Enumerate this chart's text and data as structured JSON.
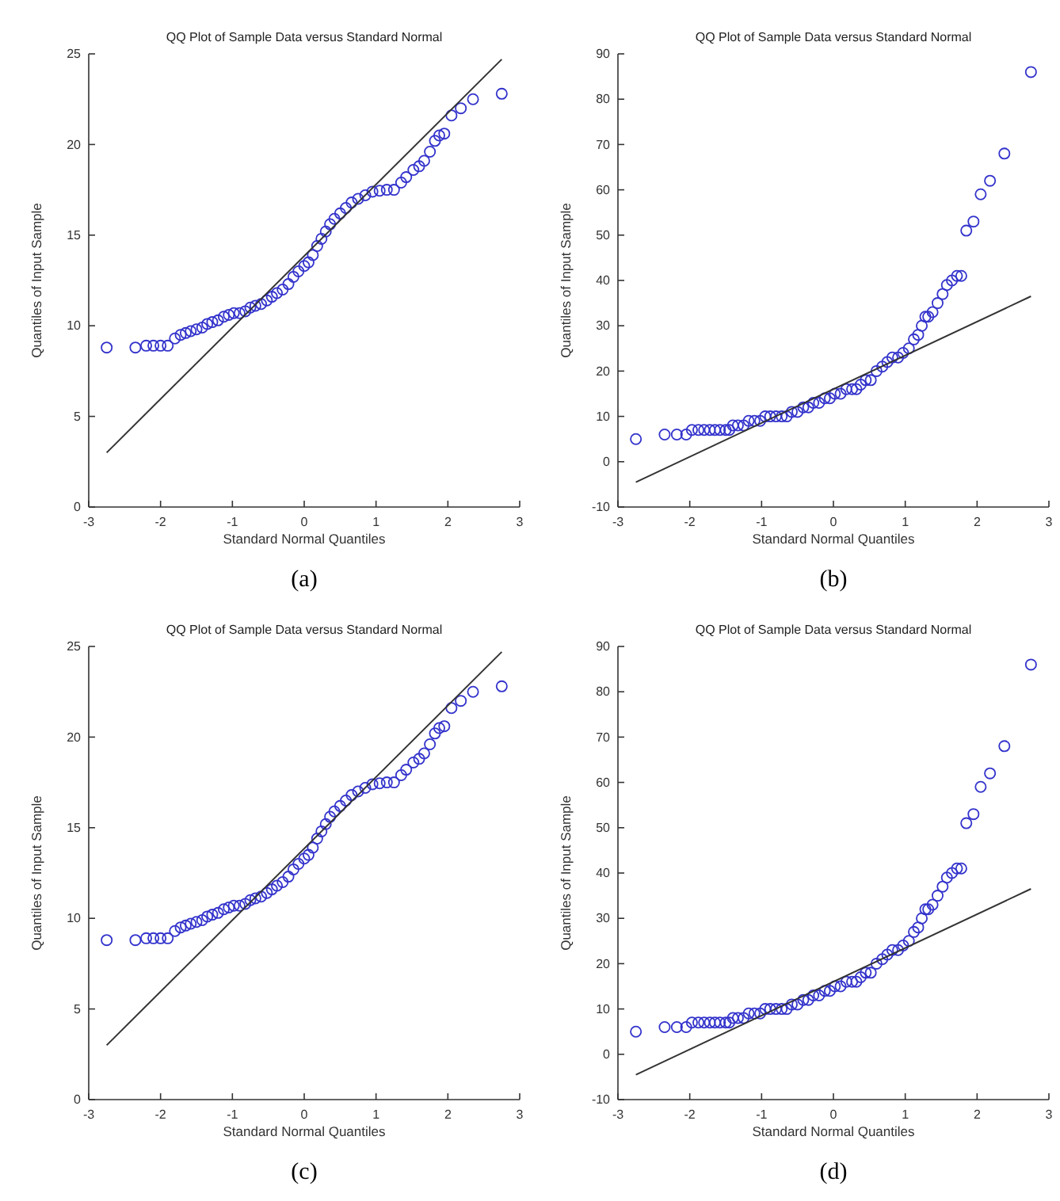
{
  "chart_data": [
    {
      "type": "scatter",
      "title": "QQ Plot of Sample Data versus Standard Normal",
      "xlabel": "Standard Normal Quantiles",
      "ylabel": "Quantiles of Input Sample",
      "annotations": [
        "(a)"
      ],
      "xlim": [
        -3,
        3
      ],
      "xticks": [
        -3,
        -2,
        -1,
        0,
        1,
        2,
        3
      ],
      "ylim": [
        0,
        25
      ],
      "yticks": [
        0,
        5,
        10,
        15,
        20,
        25
      ],
      "grid": false,
      "series": [
        {
          "marker": "circle",
          "color": "#3333cc",
          "x": [
            -2.75,
            -2.35,
            -2.2,
            -2.1,
            -2.0,
            -1.9,
            -1.8,
            -1.72,
            -1.65,
            -1.58,
            -1.5,
            -1.42,
            -1.35,
            -1.28,
            -1.2,
            -1.12,
            -1.05,
            -0.98,
            -0.9,
            -0.82,
            -0.75,
            -0.68,
            -0.6,
            -0.52,
            -0.45,
            -0.38,
            -0.3,
            -0.22,
            -0.15,
            -0.08,
            0,
            0.06,
            0.12,
            0.18,
            0.24,
            0.3,
            0.36,
            0.42,
            0.5,
            0.58,
            0.66,
            0.75,
            0.85,
            0.95,
            1.05,
            1.15,
            1.25,
            1.35,
            1.42,
            1.52,
            1.6,
            1.67,
            1.75,
            1.82,
            1.88,
            1.95,
            2.05,
            2.18,
            2.35,
            2.75
          ],
          "values": [
            8.8,
            8.8,
            8.9,
            8.9,
            8.9,
            8.9,
            9.3,
            9.5,
            9.6,
            9.7,
            9.8,
            9.9,
            10.1,
            10.2,
            10.3,
            10.5,
            10.6,
            10.7,
            10.7,
            10.8,
            11.0,
            11.1,
            11.2,
            11.4,
            11.6,
            11.8,
            12.0,
            12.3,
            12.7,
            13.0,
            13.3,
            13.5,
            13.9,
            14.4,
            14.8,
            15.2,
            15.6,
            15.9,
            16.2,
            16.5,
            16.8,
            17.0,
            17.2,
            17.4,
            17.45,
            17.5,
            17.5,
            17.9,
            18.2,
            18.6,
            18.8,
            19.1,
            19.6,
            20.2,
            20.5,
            20.6,
            21.6,
            22.0,
            22.5,
            22.8
          ]
        },
        {
          "type": "line",
          "color": "#333333",
          "x": [
            -2.75,
            2.75
          ],
          "values": [
            3.0,
            24.7
          ]
        }
      ]
    },
    {
      "type": "scatter",
      "title": "QQ Plot of Sample Data versus Standard Normal",
      "xlabel": "Standard Normal Quantiles",
      "ylabel": "Quantiles of Input Sample",
      "annotations": [
        "(b)"
      ],
      "xlim": [
        -3,
        3
      ],
      "xticks": [
        -3,
        -2,
        -1,
        0,
        1,
        2,
        3
      ],
      "ylim": [
        -10,
        90
      ],
      "yticks": [
        -10,
        0,
        10,
        20,
        30,
        40,
        50,
        60,
        70,
        80,
        90
      ],
      "grid": false,
      "series": [
        {
          "marker": "circle",
          "color": "#3333cc",
          "x": [
            -2.75,
            -2.35,
            -2.18,
            -2.05,
            -1.97,
            -1.88,
            -1.8,
            -1.72,
            -1.65,
            -1.58,
            -1.5,
            -1.45,
            -1.4,
            -1.33,
            -1.25,
            -1.18,
            -1.1,
            -1.02,
            -0.95,
            -0.88,
            -0.8,
            -0.72,
            -0.65,
            -0.58,
            -0.5,
            -0.42,
            -0.35,
            -0.28,
            -0.2,
            -0.12,
            -0.05,
            0.02,
            0.1,
            0.18,
            0.26,
            0.32,
            0.38,
            0.45,
            0.52,
            0.6,
            0.68,
            0.75,
            0.82,
            0.9,
            0.97,
            1.05,
            1.12,
            1.18,
            1.23,
            1.28,
            1.32,
            1.38,
            1.45,
            1.52,
            1.58,
            1.65,
            1.72,
            1.78,
            1.85,
            1.95,
            2.05,
            2.18,
            2.38,
            2.75
          ],
          "values": [
            5,
            6,
            6,
            6,
            7,
            7,
            7,
            7,
            7,
            7,
            7,
            7,
            8,
            8,
            8,
            9,
            9,
            9,
            10,
            10,
            10,
            10,
            10,
            11,
            11,
            12,
            12,
            13,
            13,
            14,
            14,
            15,
            15,
            16,
            16,
            16,
            17,
            18,
            18,
            20,
            21,
            22,
            23,
            23,
            24,
            25,
            27,
            28,
            30,
            32,
            32,
            33,
            35,
            37,
            39,
            40,
            41,
            41,
            51,
            53,
            59,
            62,
            68,
            86
          ]
        },
        {
          "type": "line",
          "color": "#333333",
          "x": [
            -2.75,
            2.75
          ],
          "values": [
            -4.5,
            36.5
          ]
        }
      ]
    },
    {
      "type": "scatter",
      "title": "QQ Plot of Sample Data versus Standard Normal",
      "xlabel": "Standard Normal Quantiles",
      "ylabel": "Quantiles of Input Sample",
      "annotations": [
        "(c)"
      ],
      "xlim": [
        -3,
        3
      ],
      "xticks": [
        -3,
        -2,
        -1,
        0,
        1,
        2,
        3
      ],
      "ylim": [
        0,
        25
      ],
      "yticks": [
        0,
        5,
        10,
        15,
        20,
        25
      ],
      "grid": false,
      "series": [
        {
          "marker": "circle",
          "color": "#3333cc",
          "x": [
            -2.75,
            -2.35,
            -2.2,
            -2.1,
            -2.0,
            -1.9,
            -1.8,
            -1.72,
            -1.65,
            -1.58,
            -1.5,
            -1.42,
            -1.35,
            -1.28,
            -1.2,
            -1.12,
            -1.05,
            -0.98,
            -0.9,
            -0.82,
            -0.75,
            -0.68,
            -0.6,
            -0.52,
            -0.45,
            -0.38,
            -0.3,
            -0.22,
            -0.15,
            -0.08,
            0,
            0.06,
            0.12,
            0.18,
            0.24,
            0.3,
            0.36,
            0.42,
            0.5,
            0.58,
            0.66,
            0.75,
            0.85,
            0.95,
            1.05,
            1.15,
            1.25,
            1.35,
            1.42,
            1.52,
            1.6,
            1.67,
            1.75,
            1.82,
            1.88,
            1.95,
            2.05,
            2.18,
            2.35,
            2.75
          ],
          "values": [
            8.8,
            8.8,
            8.9,
            8.9,
            8.9,
            8.9,
            9.3,
            9.5,
            9.6,
            9.7,
            9.8,
            9.9,
            10.1,
            10.2,
            10.3,
            10.5,
            10.6,
            10.7,
            10.7,
            10.8,
            11.0,
            11.1,
            11.2,
            11.4,
            11.6,
            11.8,
            12.0,
            12.3,
            12.7,
            13.0,
            13.3,
            13.5,
            13.9,
            14.4,
            14.8,
            15.2,
            15.6,
            15.9,
            16.2,
            16.5,
            16.8,
            17.0,
            17.2,
            17.4,
            17.45,
            17.5,
            17.5,
            17.9,
            18.2,
            18.6,
            18.8,
            19.1,
            19.6,
            20.2,
            20.5,
            20.6,
            21.6,
            22.0,
            22.5,
            22.8
          ]
        },
        {
          "type": "line",
          "color": "#333333",
          "x": [
            -2.75,
            2.75
          ],
          "values": [
            3.0,
            24.7
          ]
        }
      ]
    },
    {
      "type": "scatter",
      "title": "QQ Plot of Sample Data versus Standard Normal",
      "xlabel": "Standard Normal Quantiles",
      "ylabel": "Quantiles of Input Sample",
      "annotations": [
        "(d)"
      ],
      "xlim": [
        -3,
        3
      ],
      "xticks": [
        -3,
        -2,
        -1,
        0,
        1,
        2,
        3
      ],
      "ylim": [
        -10,
        90
      ],
      "yticks": [
        -10,
        0,
        10,
        20,
        30,
        40,
        50,
        60,
        70,
        80,
        90
      ],
      "grid": false,
      "series": [
        {
          "marker": "circle",
          "color": "#3333cc",
          "x": [
            -2.75,
            -2.35,
            -2.18,
            -2.05,
            -1.97,
            -1.88,
            -1.8,
            -1.72,
            -1.65,
            -1.58,
            -1.5,
            -1.45,
            -1.4,
            -1.33,
            -1.25,
            -1.18,
            -1.1,
            -1.02,
            -0.95,
            -0.88,
            -0.8,
            -0.72,
            -0.65,
            -0.58,
            -0.5,
            -0.42,
            -0.35,
            -0.28,
            -0.2,
            -0.12,
            -0.05,
            0.02,
            0.1,
            0.18,
            0.26,
            0.32,
            0.38,
            0.45,
            0.52,
            0.6,
            0.68,
            0.75,
            0.82,
            0.9,
            0.97,
            1.05,
            1.12,
            1.18,
            1.23,
            1.28,
            1.32,
            1.38,
            1.45,
            1.52,
            1.58,
            1.65,
            1.72,
            1.78,
            1.85,
            1.95,
            2.05,
            2.18,
            2.38,
            2.75
          ],
          "values": [
            5,
            6,
            6,
            6,
            7,
            7,
            7,
            7,
            7,
            7,
            7,
            7,
            8,
            8,
            8,
            9,
            9,
            9,
            10,
            10,
            10,
            10,
            10,
            11,
            11,
            12,
            12,
            13,
            13,
            14,
            14,
            15,
            15,
            16,
            16,
            16,
            17,
            18,
            18,
            20,
            21,
            22,
            23,
            23,
            24,
            25,
            27,
            28,
            30,
            32,
            32,
            33,
            35,
            37,
            39,
            40,
            41,
            41,
            51,
            53,
            59,
            62,
            68,
            86
          ]
        },
        {
          "type": "line",
          "color": "#333333",
          "x": [
            -2.75,
            2.75
          ],
          "values": [
            -4.5,
            36.5
          ]
        }
      ]
    }
  ]
}
